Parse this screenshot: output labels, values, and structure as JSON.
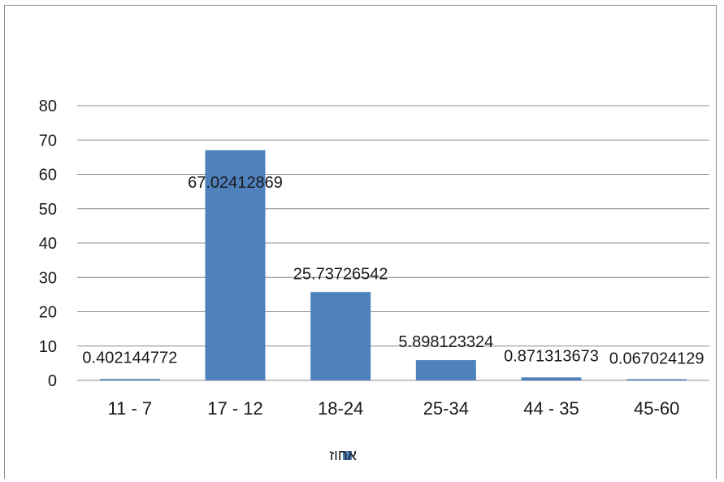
{
  "chart_data": {
    "type": "bar",
    "categories": [
      "11 - 7",
      "17 - 12",
      "18-24",
      "25-34",
      "44 - 35",
      "45-60"
    ],
    "series": [
      {
        "name": "אחוז",
        "values": [
          0.402144772,
          67.02412869,
          25.73726542,
          5.898123324,
          0.871313673,
          0.067024129
        ],
        "labels": [
          "0.402144772",
          "67.02412869",
          "25.73726542",
          "5.898123324",
          "0.871313673",
          "0.067024129"
        ]
      }
    ],
    "yticks": [
      "0",
      "10",
      "20",
      "30",
      "40",
      "50",
      "60",
      "70",
      "80"
    ],
    "ylim": [
      0,
      80
    ],
    "grid": true,
    "legend": "bottom",
    "colors": {
      "bar": "#4f81bd",
      "grid": "#8c8c8c",
      "text": "#1a1a1a"
    }
  }
}
